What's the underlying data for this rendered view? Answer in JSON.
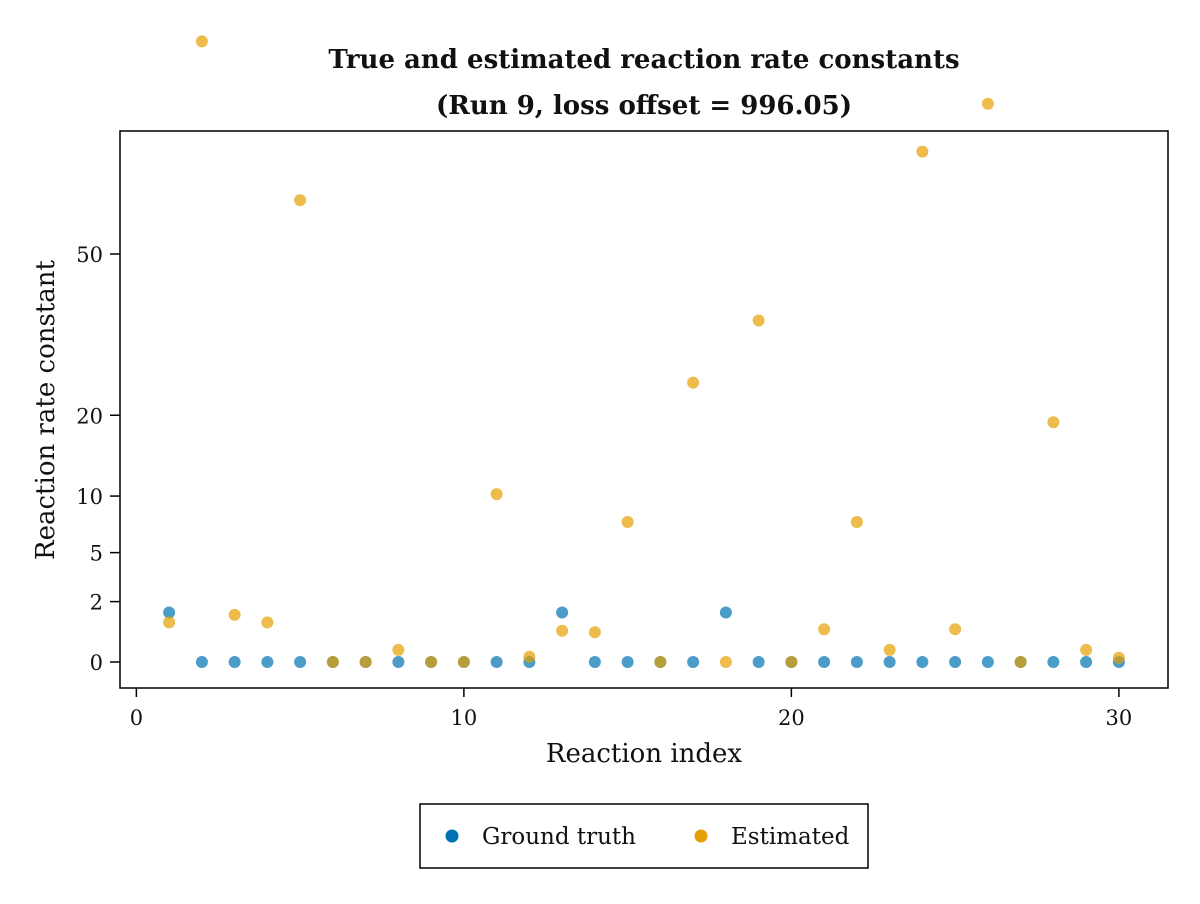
{
  "chart_data": {
    "type": "scatter",
    "title": "True and estimated reaction rate constants",
    "subtitle": "(Run 9, loss offset = 996.05)",
    "xlabel": "Reaction index",
    "ylabel": "Reaction rate constant",
    "xlim": [
      -0.5,
      31.5
    ],
    "ylim": [
      -0.5,
      115
    ],
    "y_scale": "pseudo-log (sqrt-like)",
    "x_ticks": [
      0,
      10,
      20,
      30
    ],
    "y_ticks": [
      0,
      2,
      5,
      10,
      20,
      50
    ],
    "grid": false,
    "legend_position": "bottom-center",
    "series": [
      {
        "name": "Ground truth",
        "color": "#0072B2",
        "x": [
          1,
          2,
          3,
          4,
          5,
          6,
          7,
          8,
          9,
          10,
          11,
          12,
          13,
          14,
          15,
          16,
          17,
          18,
          19,
          20,
          21,
          22,
          23,
          24,
          25,
          26,
          27,
          28,
          29,
          30
        ],
        "y": [
          1.5,
          0,
          0,
          0,
          0,
          0,
          0,
          0,
          0,
          0,
          0,
          0,
          1.5,
          0,
          0,
          0,
          0,
          1.5,
          0,
          0,
          0,
          0,
          0,
          0,
          0,
          0,
          0,
          0,
          0,
          0
        ]
      },
      {
        "name": "Estimated",
        "color": "#E69F00",
        "x": [
          1,
          2,
          3,
          4,
          5,
          6,
          7,
          8,
          9,
          10,
          11,
          12,
          13,
          14,
          15,
          16,
          17,
          18,
          19,
          20,
          21,
          22,
          23,
          24,
          25,
          26,
          27,
          28,
          29,
          30
        ],
        "y": [
          1.1,
          110,
          1.4,
          1.1,
          63,
          0,
          0,
          0.25,
          0,
          0,
          10.2,
          0.1,
          0.8,
          0.75,
          7.5,
          0,
          25,
          0,
          36,
          0,
          0.85,
          7.5,
          0.25,
          76,
          0.85,
          90,
          0,
          19,
          0.25,
          0.08
        ]
      }
    ]
  }
}
